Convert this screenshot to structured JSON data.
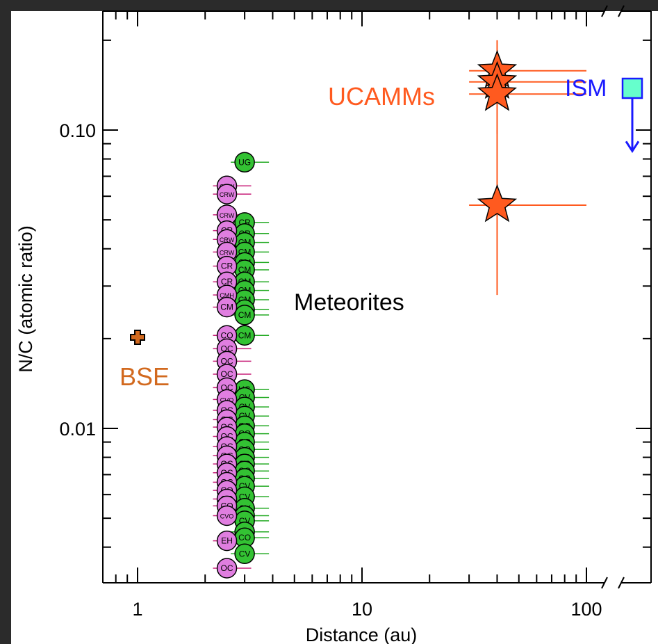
{
  "colors": {
    "frame": "#2b2b2b",
    "axis": "#000000",
    "ucamm": "#ff5a1f",
    "bse": "#d2691e",
    "ism": "#1a1aff",
    "ism_fill": "#66ffcc",
    "meteorite_pink": "#e07ee0",
    "meteorite_green": "#33c233",
    "pink_bar": "#c8207a",
    "green_bar": "#22aa22"
  },
  "chart_data": {
    "type": "scatter",
    "title": "",
    "xlabel": "Distance (au)",
    "ylabel": "N/C (atomic ratio)",
    "xscale": "log",
    "yscale": "log",
    "xlim": [
      0.7,
      290
    ],
    "ylim": [
      0.0031,
      0.23
    ],
    "x_axis_break": "between 100 and 150 au",
    "x_ticks": [
      {
        "value": 1,
        "label": "1"
      },
      {
        "value": 10,
        "label": "10"
      },
      {
        "value": 100,
        "label": "100"
      }
    ],
    "y_ticks": [
      {
        "value": 0.01,
        "label": "0.01"
      },
      {
        "value": 0.1,
        "label": "0.10"
      }
    ],
    "annotations": [
      {
        "text": "UCAMMs",
        "color": "#ff5a1f",
        "near": {
          "x": 15,
          "y": 0.14
        }
      },
      {
        "text": "Meteorites",
        "color": "#000000",
        "near": {
          "x": 7.5,
          "y": 0.029
        }
      },
      {
        "text": "BSE",
        "color": "#d2691e",
        "near": {
          "x": 1,
          "y": 0.0163
        }
      },
      {
        "text": "ISM",
        "color": "#1a1aff",
        "near": {
          "x": 100,
          "y": 0.137
        }
      }
    ],
    "series": [
      {
        "name": "BSE",
        "marker": "plus",
        "points": [
          {
            "x": 1.0,
            "y": 0.0202
          }
        ]
      },
      {
        "name": "UCAMMs",
        "marker": "star",
        "points": [
          {
            "x": 40,
            "y": 0.158,
            "xerr": [
              30,
              100
            ],
            "yerr": [
              0.097,
              0.2
            ]
          },
          {
            "x": 40,
            "y": 0.145,
            "xerr": [
              30,
              100
            ]
          },
          {
            "x": 40,
            "y": 0.132,
            "xerr": [
              30,
              100
            ]
          },
          {
            "x": 40,
            "y": 0.056,
            "xerr": [
              30,
              100
            ],
            "yerr": [
              0.028,
              0.1
            ]
          }
        ]
      },
      {
        "name": "ISM",
        "marker": "square",
        "upper_limit": true,
        "points": [
          {
            "x": 150,
            "y": 0.138,
            "arrow_to": 0.085
          }
        ]
      },
      {
        "name": "Meteorites",
        "marker": "circle",
        "points": [
          {
            "x": 3.0,
            "y": 0.078,
            "label": "UG"
          },
          {
            "x": 2.5,
            "y": 0.065,
            "label": "CRW"
          },
          {
            "x": 2.5,
            "y": 0.061,
            "label": "CRW"
          },
          {
            "x": 2.5,
            "y": 0.052,
            "label": "CRW"
          },
          {
            "x": 2.5,
            "y": 0.046,
            "label": "CR"
          },
          {
            "x": 2.5,
            "y": 0.043,
            "label": "CRW"
          },
          {
            "x": 2.5,
            "y": 0.039,
            "label": "CRW"
          },
          {
            "x": 2.5,
            "y": 0.035,
            "label": "CR"
          },
          {
            "x": 2.5,
            "y": 0.031,
            "label": "CR"
          },
          {
            "x": 2.5,
            "y": 0.028,
            "label": "CMH"
          },
          {
            "x": 2.5,
            "y": 0.0255,
            "label": "CM"
          },
          {
            "x": 3.0,
            "y": 0.049,
            "label": "CR"
          },
          {
            "x": 3.0,
            "y": 0.045,
            "label": "CR"
          },
          {
            "x": 3.0,
            "y": 0.042,
            "label": "CM"
          },
          {
            "x": 3.0,
            "y": 0.039,
            "label": "CM"
          },
          {
            "x": 3.0,
            "y": 0.036,
            "label": "CM"
          },
          {
            "x": 3.0,
            "y": 0.034,
            "label": "CM"
          },
          {
            "x": 3.0,
            "y": 0.031,
            "label": "CM"
          },
          {
            "x": 3.0,
            "y": 0.029,
            "label": "CM"
          },
          {
            "x": 3.0,
            "y": 0.027,
            "label": "CM"
          },
          {
            "x": 3.0,
            "y": 0.025,
            "label": "CM"
          },
          {
            "x": 3.0,
            "y": 0.024,
            "label": "CM"
          },
          {
            "x": 3.0,
            "y": 0.0205,
            "label": "CM"
          },
          {
            "x": 2.5,
            "y": 0.0205,
            "label": "CO"
          },
          {
            "x": 2.5,
            "y": 0.0185,
            "label": "OC"
          },
          {
            "x": 2.5,
            "y": 0.0168,
            "label": "OC"
          },
          {
            "x": 2.5,
            "y": 0.0152,
            "label": "OC"
          },
          {
            "x": 2.5,
            "y": 0.0137,
            "label": "OC"
          },
          {
            "x": 2.5,
            "y": 0.0125,
            "label": "CVO"
          },
          {
            "x": 2.5,
            "y": 0.0115,
            "label": "OC"
          },
          {
            "x": 2.5,
            "y": 0.0107,
            "label": "OC"
          },
          {
            "x": 2.5,
            "y": 0.0101,
            "label": "OC"
          },
          {
            "x": 2.5,
            "y": 0.0094,
            "label": "OC"
          },
          {
            "x": 2.5,
            "y": 0.0087,
            "label": "OC"
          },
          {
            "x": 2.5,
            "y": 0.0081,
            "label": "OC"
          },
          {
            "x": 2.5,
            "y": 0.0076,
            "label": "OC"
          },
          {
            "x": 2.5,
            "y": 0.0071,
            "label": "OC"
          },
          {
            "x": 2.5,
            "y": 0.0066,
            "label": "OC"
          },
          {
            "x": 2.5,
            "y": 0.0062,
            "label": "CO"
          },
          {
            "x": 2.5,
            "y": 0.0058,
            "label": "CO"
          },
          {
            "x": 2.5,
            "y": 0.0055,
            "label": "CO"
          },
          {
            "x": 2.5,
            "y": 0.0051,
            "label": "CVO"
          },
          {
            "x": 2.5,
            "y": 0.0042,
            "label": "EH"
          },
          {
            "x": 2.5,
            "y": 0.0034,
            "label": "OC"
          },
          {
            "x": 3.0,
            "y": 0.0135,
            "label": "UG"
          },
          {
            "x": 3.0,
            "y": 0.0127,
            "label": "CV"
          },
          {
            "x": 3.0,
            "y": 0.0118,
            "label": "CV"
          },
          {
            "x": 3.0,
            "y": 0.011,
            "label": "CV"
          },
          {
            "x": 3.0,
            "y": 0.0102,
            "label": "CO"
          },
          {
            "x": 3.0,
            "y": 0.0096,
            "label": "CO"
          },
          {
            "x": 3.0,
            "y": 0.009,
            "label": "CO"
          },
          {
            "x": 3.0,
            "y": 0.0085,
            "label": "CO"
          },
          {
            "x": 3.0,
            "y": 0.008,
            "label": "CO"
          },
          {
            "x": 3.0,
            "y": 0.0076,
            "label": "CO"
          },
          {
            "x": 3.0,
            "y": 0.0072,
            "label": "CO"
          },
          {
            "x": 3.0,
            "y": 0.0068,
            "label": "CO"
          },
          {
            "x": 3.0,
            "y": 0.0064,
            "label": "CV"
          },
          {
            "x": 3.0,
            "y": 0.0059,
            "label": "CV"
          },
          {
            "x": 3.0,
            "y": 0.0054,
            "label": "CV"
          },
          {
            "x": 3.0,
            "y": 0.0051,
            "label": "CV"
          },
          {
            "x": 3.0,
            "y": 0.0049,
            "label": "CV"
          },
          {
            "x": 3.0,
            "y": 0.0045,
            "label": "UG"
          },
          {
            "x": 3.0,
            "y": 0.0043,
            "label": "CO"
          },
          {
            "x": 3.0,
            "y": 0.0038,
            "label": "CV"
          }
        ]
      }
    ]
  }
}
